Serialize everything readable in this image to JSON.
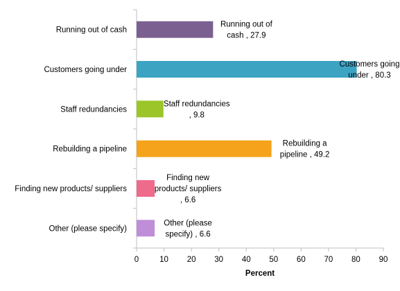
{
  "chart_data": {
    "type": "bar",
    "orientation": "horizontal",
    "categories": [
      "Running out of cash",
      "Customers going under",
      "Staff redundancies",
      "Rebuilding a pipeline",
      "Finding new products/ suppliers",
      "Other (please specify)"
    ],
    "values": [
      27.9,
      80.3,
      9.8,
      49.2,
      6.6,
      6.6
    ],
    "colors": [
      "#7b5f91",
      "#3ca3c3",
      "#9bc528",
      "#f5a31a",
      "#ef6b8b",
      "#bf8ed9"
    ],
    "data_labels": [
      [
        "Running out of",
        "cash , 27.9"
      ],
      [
        "Customers going",
        "under , 80.3"
      ],
      [
        "Staff redundancies",
        ", 9.8"
      ],
      [
        "Rebuilding a",
        "pipeline , 49.2"
      ],
      [
        "Finding new",
        "products/ suppliers",
        ", 6.6"
      ],
      [
        "Other (please",
        "specify) , 6.6"
      ]
    ],
    "xlabel": "Percent",
    "xlim": [
      0,
      90
    ],
    "xticks": [
      0,
      10,
      20,
      30,
      40,
      50,
      60,
      70,
      80,
      90
    ],
    "grid": false,
    "legend": "none"
  }
}
